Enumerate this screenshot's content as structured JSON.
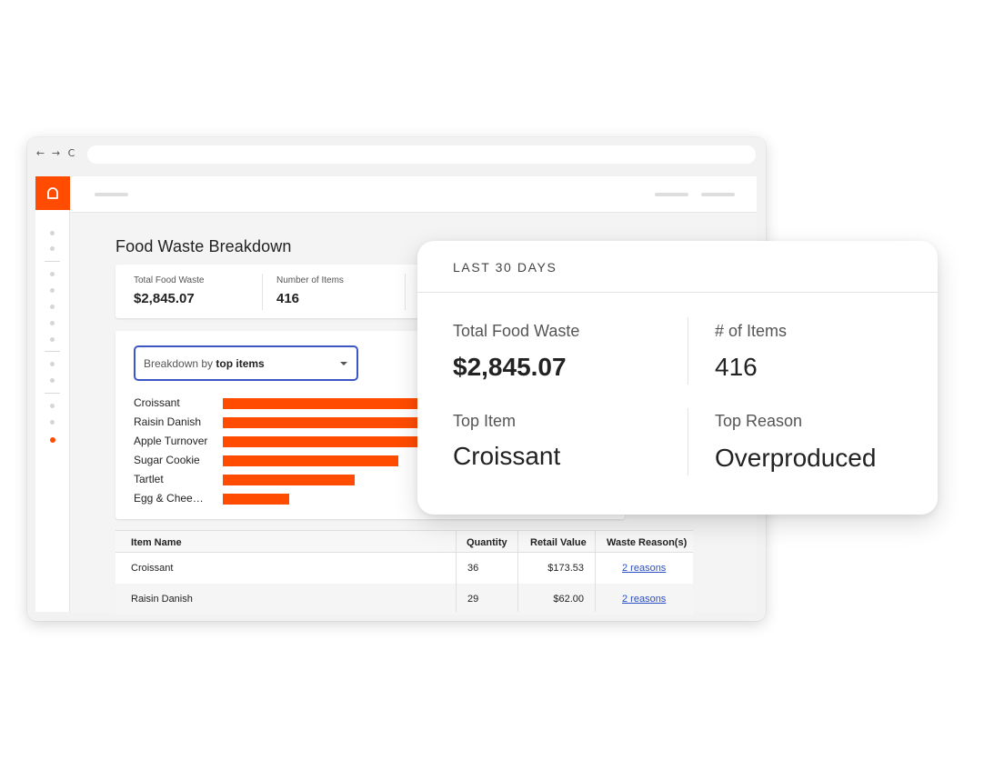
{
  "browser": {
    "nav": {
      "back": "←",
      "forward": "→",
      "reload": "C"
    }
  },
  "page": {
    "title": "Food Waste Breakdown"
  },
  "stats": [
    {
      "label": "Total Food Waste",
      "value": "$2,845.07"
    },
    {
      "label": "Number of Items",
      "value": "416"
    }
  ],
  "breakdown": {
    "select_prefix": "Breakdown by ",
    "select_value": "top items"
  },
  "chart_data": {
    "type": "bar",
    "orientation": "horizontal",
    "categories": [
      "Croissant",
      "Raisin Danish",
      "Apple Turnover",
      "Sugar Cookie",
      "Tartlet",
      "Egg & Chee…"
    ],
    "values": [
      36,
      29,
      27,
      24,
      18,
      9
    ],
    "value_note": "bar lengths partially hidden behind overlay card; relative values estimated",
    "title": "",
    "xlabel": "",
    "ylabel": "",
    "color": "#ff4c00",
    "grid": false
  },
  "table": {
    "headers": [
      "Item Name",
      "Quantity",
      "Retail Value",
      "Waste Reason(s)"
    ],
    "rows": [
      {
        "item": "Croissant",
        "quantity": "36",
        "retail": "$173.53",
        "reasons": "2 reasons"
      },
      {
        "item": "Raisin Danish",
        "quantity": "29",
        "retail": "$62.00",
        "reasons": "2 reasons"
      }
    ]
  },
  "overlay": {
    "header": "LAST 30 DAYS",
    "total_label": "Total Food Waste",
    "total_value": "$2,845.07",
    "items_label": "# of Items",
    "items_value": "416",
    "top_item_label": "Top Item",
    "top_item_value": "Croissant",
    "top_reason_label": "Top Reason",
    "top_reason_value": "Overproduced"
  },
  "colors": {
    "brand": "#ff4c00",
    "select_border": "#3e55c6",
    "link": "#2b4fc4"
  },
  "icons": [
    "logo-icon",
    "sidebar-nav-icons"
  ]
}
